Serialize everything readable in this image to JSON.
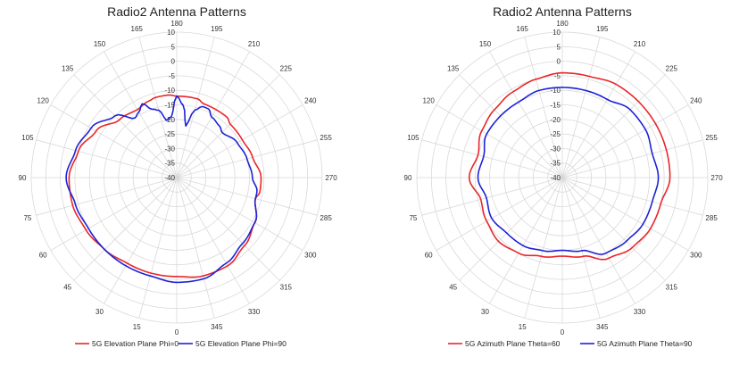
{
  "colors": {
    "series_red": "#e8262b",
    "series_blue": "#1d22d6",
    "grid": "#d9d9d9",
    "text": "#333333"
  },
  "chart_data": [
    {
      "type": "polar-line",
      "title": "Radio2 Antenna Patterns",
      "angle_ticks": [
        "0",
        "15",
        "30",
        "45",
        "60",
        "75",
        "90",
        "105",
        "120",
        "135",
        "150",
        "165",
        "180",
        "195",
        "210",
        "225",
        "240",
        "255",
        "270",
        "285",
        "300",
        "315",
        "330",
        "345"
      ],
      "radial_ticks": [
        "-40",
        "-35",
        "-30",
        "-25",
        "-20",
        "-15",
        "-10",
        "-5",
        "0",
        "5",
        "10"
      ],
      "rlim": [
        -40,
        10
      ],
      "angle_zero": "bottom",
      "angle_direction": "counterclockwise",
      "legend_position": "bottom",
      "grid": true,
      "series": [
        {
          "name": "5G Elevation Plane Phi=0",
          "angles": [
            0,
            15,
            30,
            45,
            60,
            75,
            90,
            105,
            120,
            135,
            150,
            160,
            165,
            170,
            175,
            180,
            185,
            195,
            200,
            210,
            220,
            225,
            240,
            255,
            270,
            280,
            285,
            300,
            315,
            330,
            345
          ],
          "values": [
            -6,
            -6,
            -6,
            -5,
            -4,
            -3,
            -3,
            -5,
            -8,
            -12,
            -13,
            -12,
            -11.5,
            -11.5,
            -11.5,
            -12,
            -12,
            -12,
            -13,
            -13,
            -13,
            -14,
            -14,
            -13,
            -11,
            -11,
            -12,
            -9,
            -7,
            -5,
            -5
          ]
        },
        {
          "name": "5G Elevation Plane Phi=90",
          "angles": [
            0,
            15,
            30,
            45,
            60,
            75,
            90,
            105,
            120,
            135,
            145,
            150,
            155,
            160,
            165,
            170,
            175,
            180,
            185,
            190,
            195,
            200,
            205,
            210,
            220,
            225,
            240,
            255,
            270,
            280,
            285,
            300,
            315,
            330,
            345
          ],
          "values": [
            -4,
            -5,
            -5,
            -5,
            -5,
            -4,
            -2,
            -4,
            -6,
            -10,
            -15,
            -14,
            -12,
            -15,
            -16,
            -20,
            -19,
            -12,
            -15,
            -22,
            -16,
            -14,
            -14,
            -16,
            -17,
            -18,
            -16,
            -15,
            -14,
            -12,
            -12,
            -9,
            -8,
            -6,
            -4
          ]
        }
      ]
    },
    {
      "type": "polar-line",
      "title": "Radio2 Antenna Patterns",
      "angle_ticks": [
        "0",
        "15",
        "30",
        "45",
        "60",
        "75",
        "90",
        "105",
        "120",
        "135",
        "150",
        "165",
        "180",
        "195",
        "210",
        "225",
        "240",
        "255",
        "270",
        "285",
        "300",
        "315",
        "330",
        "345"
      ],
      "radial_ticks": [
        "-40",
        "-35",
        "-30",
        "-25",
        "-20",
        "-15",
        "-10",
        "-5",
        "0",
        "5",
        "10"
      ],
      "rlim": [
        -40,
        10
      ],
      "angle_zero": "bottom",
      "angle_direction": "counterclockwise",
      "legend_position": "bottom",
      "grid": true,
      "series": [
        {
          "name": "5G Azimuth Plane Theta=60",
          "angles": [
            0,
            15,
            30,
            45,
            60,
            75,
            90,
            105,
            120,
            135,
            150,
            165,
            180,
            195,
            210,
            225,
            240,
            255,
            270,
            285,
            300,
            315,
            330,
            345
          ],
          "values": [
            -13,
            -12,
            -10,
            -9,
            -10,
            -11,
            -8,
            -10,
            -8,
            -7,
            -6,
            -5,
            -4,
            -4,
            -3,
            -3,
            -3,
            -3,
            -3,
            -5,
            -5,
            -6,
            -8,
            -12
          ]
        },
        {
          "name": "5G Azimuth Plane Theta=90",
          "angles": [
            0,
            15,
            30,
            45,
            60,
            75,
            90,
            105,
            120,
            135,
            150,
            165,
            180,
            195,
            210,
            225,
            240,
            255,
            270,
            285,
            300,
            315,
            330,
            345
          ],
          "values": [
            -15,
            -14,
            -13,
            -13,
            -12,
            -13,
            -11,
            -12,
            -10,
            -10,
            -10,
            -9,
            -9,
            -9,
            -9,
            -7,
            -7,
            -8,
            -7,
            -8,
            -8,
            -9,
            -10,
            -14
          ]
        }
      ]
    }
  ]
}
